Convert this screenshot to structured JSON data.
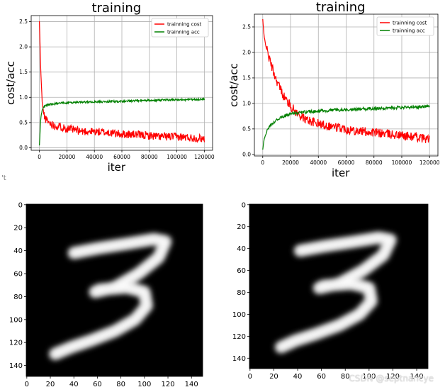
{
  "watermark": "CSDN @septnancye",
  "stray_mark": "'t",
  "chart_data": [
    {
      "type": "line",
      "title": "training",
      "xlabel": "iter",
      "ylabel": "cost/acc",
      "xlim": [
        -6000,
        126000
      ],
      "ylim": [
        -0.05,
        2.62
      ],
      "xticks": [
        "0",
        "20000",
        "40000",
        "60000",
        "80000",
        "100000",
        "120000"
      ],
      "xtick_values": [
        0,
        20000,
        40000,
        60000,
        80000,
        100000,
        120000
      ],
      "yticks": [
        "0.0",
        "0.5",
        "1.0",
        "1.5",
        "2.0",
        "2.5"
      ],
      "ytick_values": [
        0,
        0.5,
        1,
        1.5,
        2,
        2.5
      ],
      "grid": true,
      "legend_position": "top-right",
      "series": [
        {
          "name": "trainning cost",
          "color": "#ff0000",
          "x": [
            0,
            1000,
            2000,
            3000,
            4000,
            5000,
            7000,
            10000,
            15000,
            20000,
            30000,
            40000,
            50000,
            60000,
            70000,
            80000,
            90000,
            100000,
            110000,
            120000
          ],
          "y": [
            2.5,
            1.5,
            0.9,
            0.7,
            0.6,
            0.55,
            0.5,
            0.45,
            0.42,
            0.38,
            0.33,
            0.32,
            0.3,
            0.27,
            0.26,
            0.24,
            0.22,
            0.22,
            0.2,
            0.18
          ],
          "noise": 0.08
        },
        {
          "name": "trainning acc",
          "color": "#008000",
          "x": [
            0,
            1000,
            2000,
            3000,
            5000,
            8000,
            10000,
            20000,
            30000,
            40000,
            60000,
            80000,
            100000,
            120000
          ],
          "y": [
            0.05,
            0.6,
            0.75,
            0.8,
            0.84,
            0.86,
            0.87,
            0.89,
            0.9,
            0.91,
            0.92,
            0.94,
            0.95,
            0.96
          ],
          "noise": 0.02
        }
      ]
    },
    {
      "type": "line",
      "title": "training",
      "xlabel": "iter",
      "ylabel": "cost/acc",
      "xlim": [
        -6000,
        126000
      ],
      "ylim": [
        -0.03,
        2.75
      ],
      "xticks": [
        "0",
        "20000",
        "40000",
        "60000",
        "80000",
        "100000",
        "120000"
      ],
      "xtick_values": [
        0,
        20000,
        40000,
        60000,
        80000,
        100000,
        120000
      ],
      "yticks": [
        "0.0",
        "0.5",
        "1.0",
        "1.5",
        "2.0",
        "2.5"
      ],
      "ytick_values": [
        0,
        0.5,
        1,
        1.5,
        2,
        2.5
      ],
      "grid": true,
      "legend_position": "top-right",
      "series": [
        {
          "name": "trainning cost",
          "color": "#ff0000",
          "x": [
            0,
            1000,
            3000,
            5000,
            8000,
            10000,
            15000,
            20000,
            25000,
            30000,
            40000,
            50000,
            60000,
            70000,
            80000,
            90000,
            100000,
            110000,
            120000
          ],
          "y": [
            2.65,
            2.3,
            2.05,
            1.85,
            1.6,
            1.45,
            1.15,
            0.95,
            0.8,
            0.7,
            0.6,
            0.55,
            0.5,
            0.46,
            0.43,
            0.4,
            0.37,
            0.34,
            0.3
          ],
          "noise": 0.09
        },
        {
          "name": "trainning acc",
          "color": "#008000",
          "x": [
            0,
            1000,
            3000,
            5000,
            8000,
            10000,
            15000,
            20000,
            30000,
            40000,
            60000,
            80000,
            100000,
            120000
          ],
          "y": [
            0.1,
            0.3,
            0.45,
            0.55,
            0.63,
            0.68,
            0.75,
            0.8,
            0.83,
            0.85,
            0.88,
            0.9,
            0.92,
            0.94
          ],
          "noise": 0.03
        }
      ]
    },
    {
      "type": "heatmap",
      "title": "",
      "xticks": [
        "0",
        "20",
        "40",
        "60",
        "80",
        "100",
        "120",
        "140"
      ],
      "xtick_values": [
        0,
        20,
        40,
        60,
        80,
        100,
        120,
        140
      ],
      "yticks": [
        "0",
        "20",
        "40",
        "60",
        "80",
        "100",
        "120",
        "140"
      ],
      "ytick_values": [
        0,
        20,
        40,
        60,
        80,
        100,
        120,
        140
      ],
      "xlim": [
        -0.5,
        149.5
      ],
      "ylim": [
        -0.5,
        149.5
      ],
      "colormap": "gray",
      "content": "handwritten digit 3",
      "strokes": [
        [
          [
            40,
            42
          ],
          [
            60,
            38
          ],
          [
            85,
            34
          ],
          [
            108,
            30
          ],
          [
            118,
            32
          ],
          [
            112,
            46
          ],
          [
            95,
            60
          ],
          [
            75,
            72
          ],
          [
            58,
            76
          ],
          [
            62,
            74
          ],
          [
            85,
            72
          ],
          [
            100,
            76
          ],
          [
            102,
            88
          ],
          [
            92,
            100
          ],
          [
            75,
            110
          ],
          [
            55,
            118
          ],
          [
            38,
            124
          ],
          [
            24,
            130
          ]
        ]
      ]
    },
    {
      "type": "heatmap",
      "title": "",
      "xticks": [
        "0",
        "20",
        "40",
        "60",
        "80",
        "100",
        "120",
        "140"
      ],
      "xtick_values": [
        0,
        20,
        40,
        60,
        80,
        100,
        120,
        140
      ],
      "yticks": [
        "0",
        "20",
        "40",
        "60",
        "80",
        "100",
        "120",
        "140"
      ],
      "ytick_values": [
        0,
        20,
        40,
        60,
        80,
        100,
        120,
        140
      ],
      "xlim": [
        -0.5,
        149.5
      ],
      "ylim": [
        -0.5,
        149.5
      ],
      "colormap": "gray",
      "content": "handwritten digit 3",
      "strokes": [
        [
          [
            42,
            42
          ],
          [
            62,
            38
          ],
          [
            86,
            34
          ],
          [
            108,
            30
          ],
          [
            118,
            32
          ],
          [
            112,
            46
          ],
          [
            95,
            60
          ],
          [
            75,
            72
          ],
          [
            58,
            76
          ],
          [
            62,
            74
          ],
          [
            85,
            72
          ],
          [
            100,
            76
          ],
          [
            102,
            88
          ],
          [
            92,
            100
          ],
          [
            75,
            110
          ],
          [
            55,
            118
          ],
          [
            38,
            124
          ],
          [
            26,
            130
          ]
        ]
      ]
    }
  ]
}
